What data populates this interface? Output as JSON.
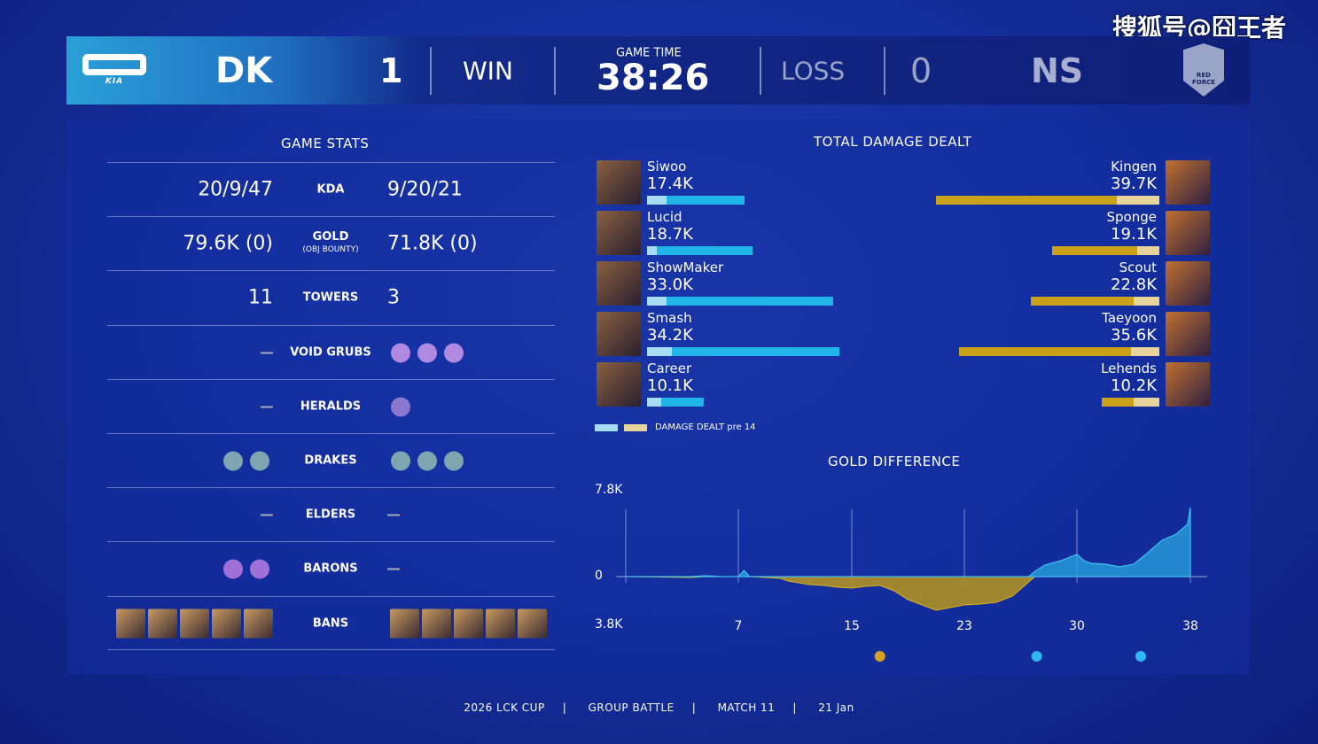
{
  "watermark": "搜狐号@囧王者",
  "header": {
    "left_team": "DK",
    "left_score": "1",
    "left_result": "WIN",
    "game_time_label": "GAME TIME",
    "game_time": "38:26",
    "right_result": "LOSS",
    "right_score": "0",
    "right_team": "NS",
    "left_logo_text": "KIA",
    "right_logo_text": "RED FORCE"
  },
  "game_stats": {
    "title": "GAME STATS",
    "rows": [
      {
        "label": "KDA",
        "left": "20/9/47",
        "right": "9/20/21"
      },
      {
        "label": "GOLD",
        "sublabel": "(OBJ BOUNTY)",
        "left": "79.6K (0)",
        "right": "71.8K (0)"
      },
      {
        "label": "TOWERS",
        "left": "11",
        "right": "3"
      },
      {
        "label": "VOID GRUBS",
        "left_icons": [],
        "right_icons": [
          "grub",
          "grub",
          "grub"
        ]
      },
      {
        "label": "HERALDS",
        "left_icons": [],
        "right_icons": [
          "herald"
        ]
      },
      {
        "label": "DRAKES",
        "left_icons": [
          "drake",
          "drake"
        ],
        "right_icons": [
          "drake",
          "drake",
          "drake"
        ]
      },
      {
        "label": "ELDERS",
        "left_icons": [],
        "right_icons": []
      },
      {
        "label": "BARONS",
        "left_icons": [
          "baron",
          "baron"
        ],
        "right_icons": []
      },
      {
        "label": "BANS",
        "left_icons": [
          "ban",
          "ban",
          "ban",
          "ban",
          "ban"
        ],
        "right_icons": [
          "ban",
          "ban",
          "ban",
          "ban",
          "ban"
        ]
      }
    ]
  },
  "damage": {
    "title": "TOTAL DAMAGE DEALT",
    "legend": "DAMAGE DEALT pre 14",
    "colors": {
      "left": "#1fb5e6",
      "left_pre": "#a8dcf2",
      "right": "#c9a21a",
      "right_pre": "#e6d49a"
    },
    "left": [
      {
        "name": "Siwoo",
        "damage": "17.4K",
        "value": 17.4,
        "pre14": 3.5
      },
      {
        "name": "Lucid",
        "damage": "18.7K",
        "value": 18.7,
        "pre14": 1.7
      },
      {
        "name": "ShowMaker",
        "damage": "33.0K",
        "value": 33.0,
        "pre14": 3.5
      },
      {
        "name": "Smash",
        "damage": "34.2K",
        "value": 34.2,
        "pre14": 4.4
      },
      {
        "name": "Career",
        "damage": "10.1K",
        "value": 10.1,
        "pre14": 2.5
      }
    ],
    "right": [
      {
        "name": "Kingen",
        "damage": "39.7K",
        "value": 39.7,
        "pre14": 7.5
      },
      {
        "name": "Sponge",
        "damage": "19.1K",
        "value": 19.1,
        "pre14": 4.0
      },
      {
        "name": "Scout",
        "damage": "22.8K",
        "value": 22.8,
        "pre14": 4.5
      },
      {
        "name": "Taeyoon",
        "damage": "35.6K",
        "value": 35.6,
        "pre14": 5.0
      },
      {
        "name": "Lehends",
        "damage": "10.2K",
        "value": 10.2,
        "pre14": 4.5
      }
    ]
  },
  "chart_data": {
    "type": "area",
    "title": "GOLD DIFFERENCE",
    "y_top_label": "7.8K",
    "y_zero_label": "0",
    "y_bottom_label": "3.8K",
    "ylim": [
      -3.8,
      7.8
    ],
    "x_ticks": [
      "7",
      "15",
      "23",
      "30",
      "38"
    ],
    "colors": {
      "positive": "#2aa8e0",
      "negative": "#b8961c"
    },
    "points": [
      [
        0,
        0
      ],
      [
        4,
        -0.1
      ],
      [
        5,
        0.1
      ],
      [
        6,
        0
      ],
      [
        7,
        0
      ],
      [
        7.4,
        0.7
      ],
      [
        7.8,
        0
      ],
      [
        10,
        -0.2
      ],
      [
        10.5,
        -0.5
      ],
      [
        12,
        -0.9
      ],
      [
        13,
        -1.0
      ],
      [
        14,
        -1.2
      ],
      [
        15,
        -1.3
      ],
      [
        16,
        -1.1
      ],
      [
        17,
        -1.0
      ],
      [
        18,
        -1.6
      ],
      [
        19,
        -2.6
      ],
      [
        20,
        -3.2
      ],
      [
        21,
        -3.8
      ],
      [
        22,
        -3.5
      ],
      [
        23,
        -3.2
      ],
      [
        24,
        -3.1
      ],
      [
        25,
        -2.9
      ],
      [
        26,
        -2.2
      ],
      [
        27,
        -0.6
      ],
      [
        27.4,
        0.6
      ],
      [
        28,
        1.3
      ],
      [
        29,
        1.8
      ],
      [
        30,
        2.5
      ],
      [
        30.5,
        1.8
      ],
      [
        31,
        1.5
      ],
      [
        32,
        1.4
      ],
      [
        33,
        1.1
      ],
      [
        34,
        1.4
      ],
      [
        35,
        2.7
      ],
      [
        36,
        4.1
      ],
      [
        37,
        4.8
      ],
      [
        37.8,
        5.9
      ],
      [
        38,
        7.8
      ]
    ],
    "objectives": [
      {
        "minute": 17,
        "type": "herald"
      },
      {
        "minute": 27.5,
        "type": "grubs"
      },
      {
        "minute": 34.5,
        "type": "grubs"
      }
    ]
  },
  "footer": [
    "2026 LCK CUP",
    "GROUP BATTLE",
    "MATCH 11",
    "21 Jan"
  ]
}
